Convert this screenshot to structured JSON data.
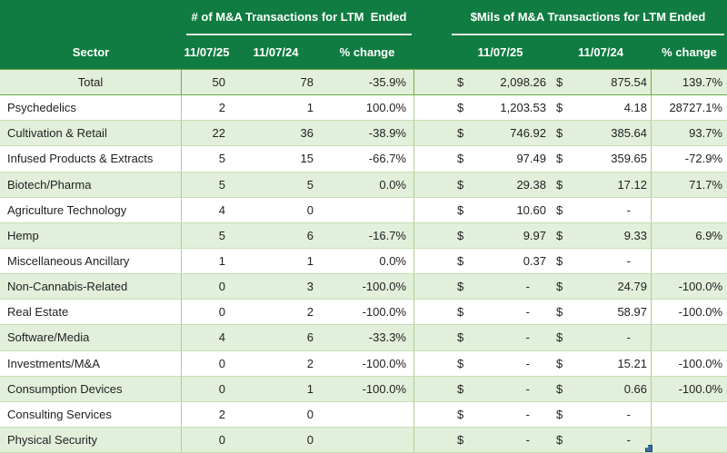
{
  "colors": {
    "header_green": "#107C41",
    "row_light_green": "#E2EFDA",
    "gridline_green": "#C6E0B4",
    "divider_green": "#A9D08E",
    "total_border_green": "#70AD47",
    "header_text": "#FFFFFF",
    "body_text": "#222222",
    "fill_handle_blue": "#366BA1"
  },
  "table": {
    "section_headers": [
      {
        "title": "# of M&A Transactions for LTM  Ended"
      },
      {
        "title": "$Mils of M&A Transactions for LTM Ended"
      }
    ],
    "columns": {
      "sector": "Sector",
      "left": [
        "11/07/25",
        "11/07/24",
        "% change"
      ],
      "right": [
        "11/07/25",
        "11/07/24",
        "% change"
      ]
    },
    "currency_symbol": "$",
    "rows": [
      {
        "sector": "Total",
        "total": true,
        "counts": [
          "50",
          "78",
          "-35.9%"
        ],
        "amounts": [
          "2,098.26",
          "875.54",
          "139.7%"
        ]
      },
      {
        "sector": "Psychedelics",
        "counts": [
          "2",
          "1",
          "100.0%"
        ],
        "amounts": [
          "1,203.53",
          "4.18",
          "28727.1%"
        ]
      },
      {
        "sector": "Cultivation & Retail",
        "counts": [
          "22",
          "36",
          "-38.9%"
        ],
        "amounts": [
          "746.92",
          "385.64",
          "93.7%"
        ]
      },
      {
        "sector": "Infused Products & Extracts",
        "counts": [
          "5",
          "15",
          "-66.7%"
        ],
        "amounts": [
          "97.49",
          "359.65",
          "-72.9%"
        ]
      },
      {
        "sector": "Biotech/Pharma",
        "counts": [
          "5",
          "5",
          "0.0%"
        ],
        "amounts": [
          "29.38",
          "17.12",
          "71.7%"
        ]
      },
      {
        "sector": "Agriculture Technology",
        "counts": [
          "4",
          "0",
          ""
        ],
        "amounts": [
          "10.60",
          "-",
          ""
        ]
      },
      {
        "sector": "Hemp",
        "counts": [
          "5",
          "6",
          "-16.7%"
        ],
        "amounts": [
          "9.97",
          "9.33",
          "6.9%"
        ]
      },
      {
        "sector": "Miscellaneous Ancillary",
        "counts": [
          "1",
          "1",
          "0.0%"
        ],
        "amounts": [
          "0.37",
          "-",
          ""
        ]
      },
      {
        "sector": "Non-Cannabis-Related",
        "counts": [
          "0",
          "3",
          "-100.0%"
        ],
        "amounts": [
          "-",
          "24.79",
          "-100.0%"
        ]
      },
      {
        "sector": "Real Estate",
        "counts": [
          "0",
          "2",
          "-100.0%"
        ],
        "amounts": [
          "-",
          "58.97",
          "-100.0%"
        ]
      },
      {
        "sector": "Software/Media",
        "counts": [
          "4",
          "6",
          "-33.3%"
        ],
        "amounts": [
          "-",
          "-",
          ""
        ]
      },
      {
        "sector": "Investments/M&A",
        "counts": [
          "0",
          "2",
          "-100.0%"
        ],
        "amounts": [
          "-",
          "15.21",
          "-100.0%"
        ]
      },
      {
        "sector": "Consumption Devices",
        "counts": [
          "0",
          "1",
          "-100.0%"
        ],
        "amounts": [
          "-",
          "0.66",
          "-100.0%"
        ]
      },
      {
        "sector": "Consulting Services",
        "counts": [
          "2",
          "0",
          ""
        ],
        "amounts": [
          "-",
          "-",
          ""
        ]
      },
      {
        "sector": "Physical Security",
        "counts": [
          "0",
          "0",
          ""
        ],
        "amounts": [
          "-",
          "-",
          ""
        ]
      }
    ]
  },
  "chart_data": {
    "type": "table",
    "title_left": "# of M&A Transactions for LTM  Ended",
    "title_right": "$Mils of M&A Transactions for LTM Ended",
    "columns": [
      "Sector",
      "# 11/07/25",
      "# 11/07/24",
      "# % change",
      "$Mils 11/07/25",
      "$Mils 11/07/24",
      "$Mils % change"
    ],
    "rows": [
      [
        "Total",
        50,
        78,
        "-35.9%",
        2098.26,
        875.54,
        "139.7%"
      ],
      [
        "Psychedelics",
        2,
        1,
        "100.0%",
        1203.53,
        4.18,
        "28727.1%"
      ],
      [
        "Cultivation & Retail",
        22,
        36,
        "-38.9%",
        746.92,
        385.64,
        "93.7%"
      ],
      [
        "Infused Products & Extracts",
        5,
        15,
        "-66.7%",
        97.49,
        359.65,
        "-72.9%"
      ],
      [
        "Biotech/Pharma",
        5,
        5,
        "0.0%",
        29.38,
        17.12,
        "71.7%"
      ],
      [
        "Agriculture Technology",
        4,
        0,
        "",
        10.6,
        null,
        ""
      ],
      [
        "Hemp",
        5,
        6,
        "-16.7%",
        9.97,
        9.33,
        "6.9%"
      ],
      [
        "Miscellaneous Ancillary",
        1,
        1,
        "0.0%",
        0.37,
        null,
        ""
      ],
      [
        "Non-Cannabis-Related",
        0,
        3,
        "-100.0%",
        null,
        24.79,
        "-100.0%"
      ],
      [
        "Real Estate",
        0,
        2,
        "-100.0%",
        null,
        58.97,
        "-100.0%"
      ],
      [
        "Software/Media",
        4,
        6,
        "-33.3%",
        null,
        null,
        ""
      ],
      [
        "Investments/M&A",
        0,
        2,
        "-100.0%",
        null,
        15.21,
        "-100.0%"
      ],
      [
        "Consumption Devices",
        0,
        1,
        "-100.0%",
        null,
        0.66,
        "-100.0%"
      ],
      [
        "Consulting Services",
        2,
        0,
        "",
        null,
        null,
        ""
      ],
      [
        "Physical Security",
        0,
        0,
        "",
        null,
        null,
        ""
      ]
    ]
  }
}
